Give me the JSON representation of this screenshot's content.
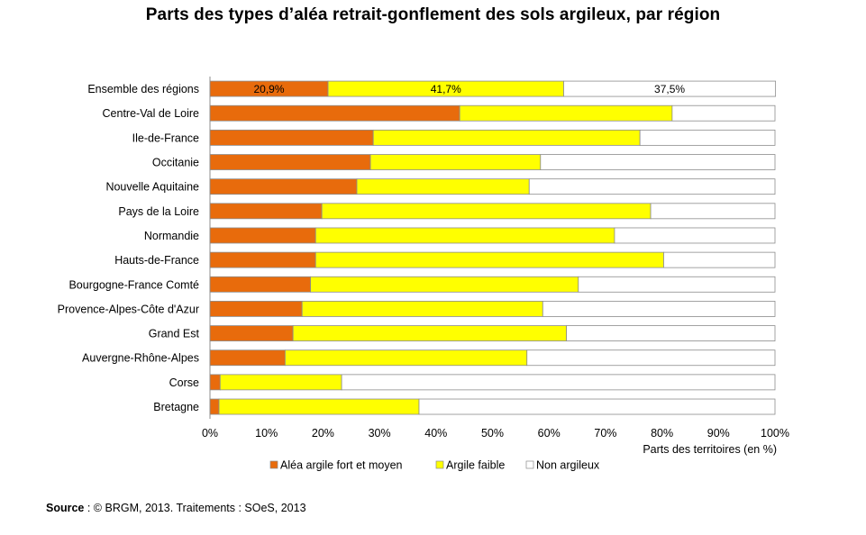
{
  "chart_data": {
    "type": "bar",
    "orientation": "horizontal",
    "stacked": "percent",
    "title": "Parts des types d’aléa retrait-gonflement des sols argileux, par région",
    "xlabel": "Parts des territoires (en %)",
    "ylabel": "",
    "xlim": [
      0,
      100
    ],
    "xticks": [
      "0%",
      "10%",
      "20%",
      "30%",
      "40%",
      "50%",
      "60%",
      "70%",
      "80%",
      "90%",
      "100%"
    ],
    "grid": false,
    "legend": "bottom",
    "categories": [
      "Ensemble des régions",
      "Centre-Val de Loire",
      "Ile-de-France",
      "Occitanie",
      "Nouvelle Aquitaine",
      "Pays de la Loire",
      "Normandie",
      "Hauts-de-France",
      "Bourgogne-France Comté",
      "Provence-Alpes-Côte d'Azur",
      "Grand Est",
      "Auvergne-Rhône-Alpes",
      "Corse",
      "Bretagne"
    ],
    "series": [
      {
        "name": "Aléa argile fort et moyen",
        "color": "#e86b0c",
        "values": [
          20.9,
          44.2,
          28.9,
          28.4,
          26.0,
          19.8,
          18.7,
          18.7,
          17.8,
          16.3,
          14.7,
          13.3,
          1.8,
          1.6
        ],
        "labels": [
          "20,9%",
          "",
          "",
          "",
          "",
          "",
          "",
          "",
          "",
          "",
          "",
          "",
          "",
          ""
        ]
      },
      {
        "name": "Argile faible",
        "color": "#ffff00",
        "values": [
          41.7,
          37.6,
          47.2,
          30.1,
          30.5,
          58.2,
          52.9,
          61.6,
          47.4,
          42.6,
          48.4,
          42.8,
          21.5,
          35.4
        ],
        "labels": [
          "41,7%",
          "",
          "",
          "",
          "",
          "",
          "",
          "",
          "",
          "",
          "",
          "",
          "",
          ""
        ]
      },
      {
        "name": "Non argileux",
        "color": "#ffffff",
        "values": [
          37.5,
          18.2,
          23.9,
          41.5,
          43.5,
          22.0,
          28.4,
          19.7,
          34.8,
          41.1,
          36.9,
          43.9,
          76.7,
          63.0
        ],
        "labels": [
          "37,5%",
          "",
          "",
          "",
          "",
          "",
          "",
          "",
          "",
          "",
          "",
          "",
          "",
          ""
        ]
      }
    ]
  },
  "source": {
    "label": "Source",
    "text": " : © BRGM, 2013. Traitements : SOeS, 2013"
  }
}
